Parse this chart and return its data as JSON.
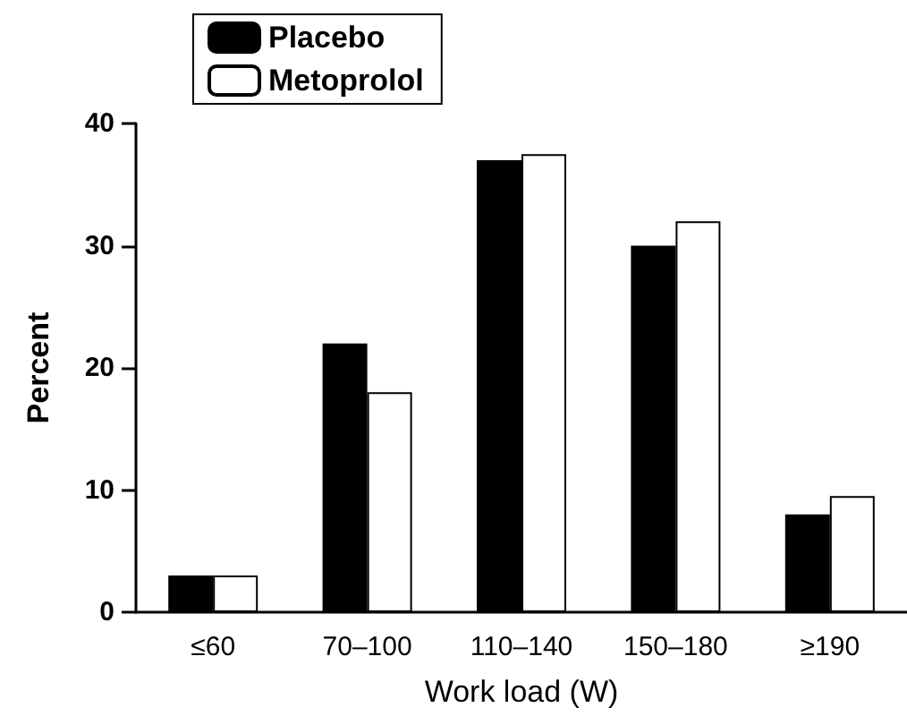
{
  "chart_data": {
    "type": "bar",
    "xlabel": "Work load (W)",
    "ylabel": "Percent",
    "categories": [
      "≤60",
      "70–100",
      "110–140",
      "150–180",
      "≥190"
    ],
    "series": [
      {
        "name": "Placebo",
        "color": "#000000",
        "values": [
          3,
          22,
          37,
          30,
          8
        ]
      },
      {
        "name": "Metoprolol",
        "color": "#ffffff",
        "values": [
          3,
          18,
          37.5,
          32,
          9.5
        ]
      }
    ],
    "ylim": [
      0,
      40
    ],
    "yticks": [
      0,
      10,
      20,
      30,
      40
    ],
    "grid": false,
    "legend": "top left"
  }
}
